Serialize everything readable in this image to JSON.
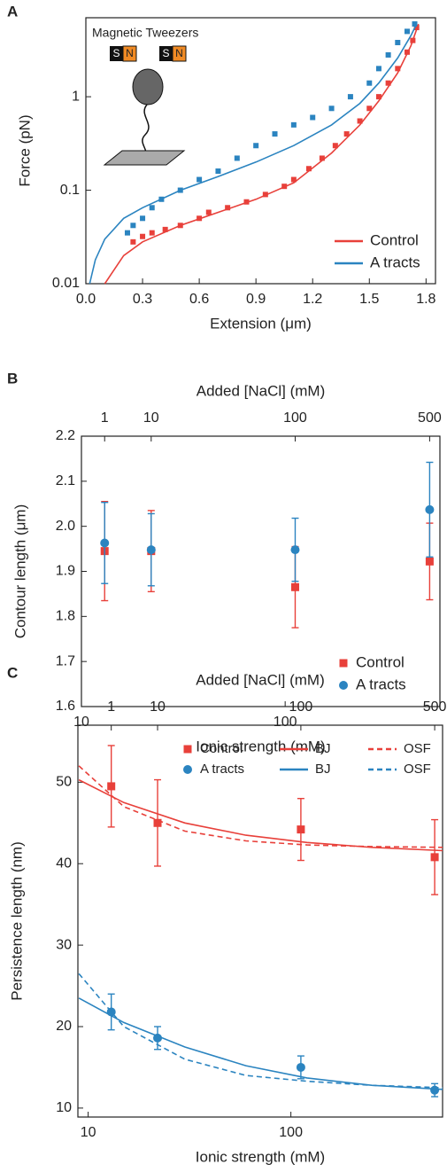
{
  "chart_data": [
    {
      "type": "scatter",
      "panel": "A",
      "xlabel": "Extension (μm)",
      "ylabel": "Force (pN)",
      "inset": {
        "title": "Magnetic Tweezers",
        "magnets": [
          [
            "S",
            "N"
          ],
          [
            "S",
            "N"
          ]
        ]
      },
      "xlim": [
        0,
        1.85
      ],
      "xticks": [
        {
          "value": 0,
          "label": "0.0"
        },
        0.3,
        0.6,
        0.9,
        1.2,
        1.5,
        1.8
      ],
      "ylim": [
        0.01,
        7
      ],
      "yscale": "log",
      "yticks": [
        0.01,
        0.1,
        1
      ],
      "legend": "lower right",
      "series": [
        {
          "name": "Control",
          "color": "#e8403a",
          "marker": "square",
          "x": [
            0.25,
            0.3,
            0.35,
            0.42,
            0.5,
            0.6,
            0.65,
            0.75,
            0.85,
            0.95,
            1.05,
            1.1,
            1.18,
            1.25,
            1.32,
            1.38,
            1.45,
            1.5,
            1.55,
            1.6,
            1.65,
            1.7,
            1.73,
            1.75
          ],
          "values": [
            0.028,
            0.032,
            0.035,
            0.038,
            0.042,
            0.05,
            0.058,
            0.065,
            0.075,
            0.09,
            0.11,
            0.13,
            0.17,
            0.22,
            0.3,
            0.4,
            0.55,
            0.75,
            1.0,
            1.4,
            2.0,
            3.0,
            4.0,
            5.5
          ]
        },
        {
          "name": "A tracts",
          "color": "#2b84c0",
          "marker": "square",
          "x": [
            0.22,
            0.25,
            0.3,
            0.35,
            0.4,
            0.5,
            0.6,
            0.7,
            0.8,
            0.9,
            1.0,
            1.1,
            1.2,
            1.3,
            1.4,
            1.5,
            1.55,
            1.6,
            1.65,
            1.7,
            1.74
          ],
          "values": [
            0.035,
            0.042,
            0.05,
            0.065,
            0.08,
            0.1,
            0.13,
            0.16,
            0.22,
            0.3,
            0.4,
            0.5,
            0.6,
            0.75,
            1.0,
            1.4,
            2.0,
            2.8,
            3.8,
            5.0,
            6.0
          ]
        },
        {
          "color": "#e8403a",
          "style": "line",
          "x": [
            0.1,
            0.2,
            0.3,
            0.5,
            0.7,
            0.9,
            1.1,
            1.3,
            1.45,
            1.55,
            1.65,
            1.72,
            1.76
          ],
          "values": [
            0.01,
            0.02,
            0.028,
            0.042,
            0.058,
            0.08,
            0.12,
            0.25,
            0.5,
            0.9,
            1.8,
            3.5,
            6
          ]
        },
        {
          "color": "#2b84c0",
          "style": "line",
          "x": [
            0.02,
            0.05,
            0.1,
            0.2,
            0.3,
            0.5,
            0.7,
            0.9,
            1.1,
            1.3,
            1.45,
            1.55,
            1.65,
            1.72,
            1.75
          ],
          "values": [
            0.01,
            0.018,
            0.03,
            0.05,
            0.065,
            0.1,
            0.14,
            0.2,
            0.3,
            0.5,
            0.85,
            1.4,
            2.6,
            4.5,
            6
          ]
        }
      ]
    },
    {
      "type": "scatter",
      "panel": "B",
      "xlabel": "Ionic strength (mM)",
      "ylabel": "Contour length (μm)",
      "x2label": "Added [NaCl] (mM)",
      "xlim": [
        10,
        575
      ],
      "xscale": "log",
      "xticks": [
        10,
        100
      ],
      "x2ticks": [
        {
          "value": 13,
          "label": "1"
        },
        {
          "value": 22,
          "label": "10"
        },
        {
          "value": 112,
          "label": "100"
        },
        {
          "value": 512,
          "label": "500"
        }
      ],
      "ylim": [
        1.6,
        2.2
      ],
      "yticks": [
        1.6,
        1.7,
        1.8,
        1.9,
        {
          "value": 2.0,
          "label": "2.0"
        },
        2.1,
        2.2
      ],
      "legend": "lower right",
      "series": [
        {
          "name": "Control",
          "color": "#e8403a",
          "marker": "square",
          "x": [
            13,
            22,
            112,
            512
          ],
          "values": [
            1.945,
            1.945,
            1.865,
            1.922
          ],
          "errors": [
            0.11,
            0.09,
            0.09,
            0.085
          ]
        },
        {
          "name": "A tracts",
          "color": "#2b84c0",
          "marker": "circle",
          "x": [
            13,
            22,
            112,
            512
          ],
          "values": [
            1.963,
            1.948,
            1.948,
            2.037
          ],
          "errors": [
            0.09,
            0.08,
            0.07,
            0.105
          ]
        }
      ]
    },
    {
      "type": "scatter",
      "panel": "C",
      "xlabel": "Ionic strength (mM)",
      "ylabel": "Persistence length (nm)",
      "x2label": "Added [NaCl] (mM)",
      "xlim": [
        8.9,
        560
      ],
      "xscale": "log",
      "xticks": [
        10,
        100
      ],
      "x2ticks": [
        {
          "value": 13,
          "label": "1"
        },
        {
          "value": 22,
          "label": "10"
        },
        {
          "value": 112,
          "label": "100"
        },
        {
          "value": 512,
          "label": "500"
        }
      ],
      "ylim": [
        8.9,
        57
      ],
      "yticks": [
        10,
        20,
        30,
        40,
        50
      ],
      "legend": "upper right",
      "series": [
        {
          "name": "Control",
          "color": "#e8403a",
          "marker": "square",
          "x": [
            13,
            22,
            112,
            512
          ],
          "values": [
            49.5,
            45,
            44.2,
            40.8
          ],
          "errors": [
            5,
            5.3,
            3.8,
            4.6
          ]
        },
        {
          "name": "A tracts",
          "color": "#2b84c0",
          "marker": "circle",
          "x": [
            13,
            22,
            112,
            512
          ],
          "values": [
            21.8,
            18.6,
            15,
            12.2
          ],
          "errors": [
            2.2,
            1.4,
            1.4,
            0.8
          ]
        },
        {
          "name": "BJ",
          "color": "#e8403a",
          "style": "line",
          "x": [
            9,
            15,
            30,
            60,
            120,
            250,
            560
          ],
          "values": [
            50.3,
            47.5,
            45,
            43.5,
            42.6,
            42,
            41.6
          ]
        },
        {
          "name": "OSF",
          "color": "#e8403a",
          "style": "line",
          "dash": true,
          "x": [
            9,
            15,
            30,
            60,
            120,
            250,
            560
          ],
          "values": [
            52,
            47,
            44,
            42.8,
            42.3,
            42.1,
            42
          ]
        },
        {
          "name": "BJ",
          "color": "#2b84c0",
          "style": "line",
          "x": [
            9,
            15,
            30,
            60,
            120,
            250,
            560
          ],
          "values": [
            23.5,
            20.5,
            17.5,
            15.2,
            13.7,
            12.8,
            12.3
          ]
        },
        {
          "name": "OSF",
          "color": "#2b84c0",
          "style": "line",
          "dash": true,
          "x": [
            9,
            15,
            30,
            60,
            120,
            250,
            560
          ],
          "values": [
            26.5,
            20,
            16,
            14,
            13.3,
            12.8,
            12.5
          ]
        }
      ]
    }
  ]
}
